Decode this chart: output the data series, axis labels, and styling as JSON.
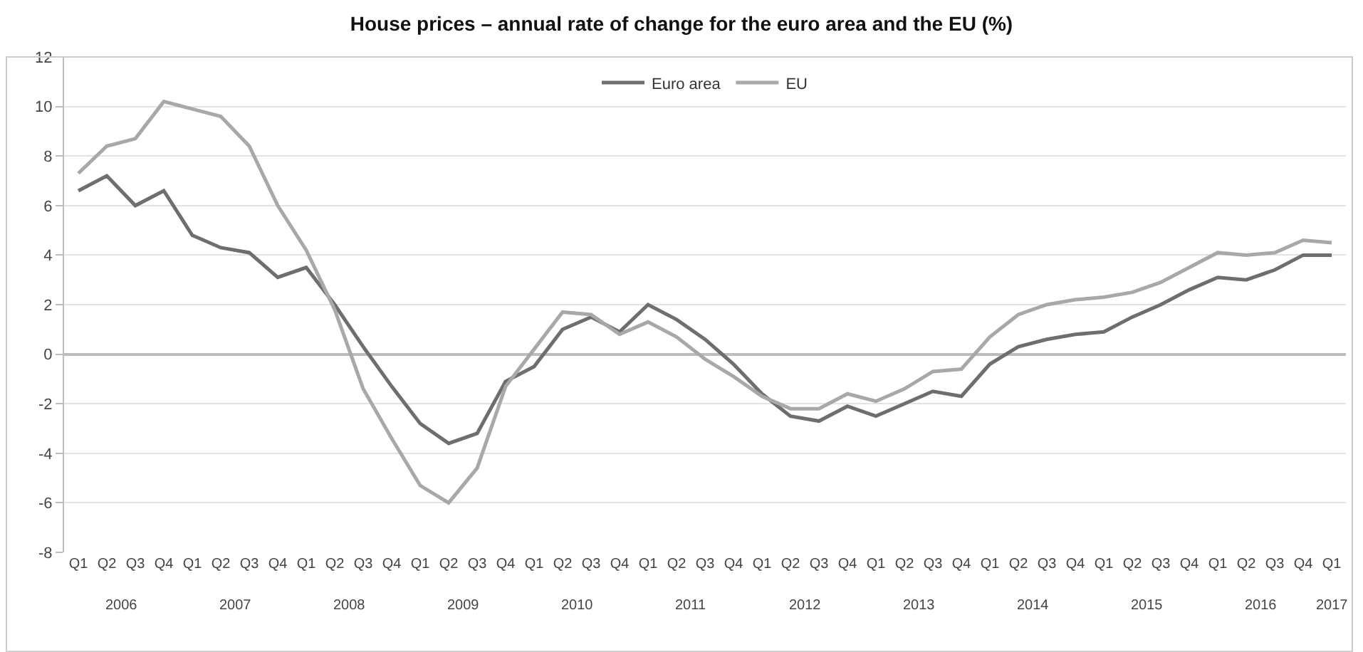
{
  "chart_data": {
    "type": "line",
    "title": "House prices – annual rate of change for the euro area and the EU (%)",
    "categories": [
      "Q1",
      "Q2",
      "Q3",
      "Q4",
      "Q1",
      "Q2",
      "Q3",
      "Q4",
      "Q1",
      "Q2",
      "Q3",
      "Q4",
      "Q1",
      "Q2",
      "Q3",
      "Q4",
      "Q1",
      "Q2",
      "Q3",
      "Q4",
      "Q1",
      "Q2",
      "Q3",
      "Q4",
      "Q1",
      "Q2",
      "Q3",
      "Q4",
      "Q1",
      "Q2",
      "Q3",
      "Q4",
      "Q1",
      "Q2",
      "Q3",
      "Q4",
      "Q1",
      "Q2",
      "Q3",
      "Q4",
      "Q1",
      "Q2",
      "Q3",
      "Q4",
      "Q1"
    ],
    "annotations": [
      "2006",
      "2007",
      "2008",
      "2009",
      "2010",
      "2011",
      "2012",
      "2013",
      "2014",
      "2015",
      "2016",
      "2017"
    ],
    "series": [
      {
        "name": "Euro area",
        "color": "#6e6e6e",
        "values": [
          6.6,
          7.2,
          6.0,
          6.6,
          4.8,
          4.3,
          4.1,
          3.1,
          3.5,
          2.0,
          0.3,
          -1.3,
          -2.8,
          -3.6,
          -3.2,
          -1.1,
          -0.5,
          1.0,
          1.5,
          0.9,
          2.0,
          1.4,
          0.6,
          -0.4,
          -1.6,
          -2.5,
          -2.7,
          -2.1,
          -2.5,
          -2.0,
          -1.5,
          -1.7,
          -0.4,
          0.3,
          0.6,
          0.8,
          0.9,
          1.5,
          2.0,
          2.6,
          3.1,
          3.0,
          3.4,
          4.0,
          4.0
        ]
      },
      {
        "name": "EU",
        "color": "#a8a8a8",
        "values": [
          7.3,
          8.4,
          8.7,
          10.2,
          9.9,
          9.6,
          8.4,
          6.0,
          4.2,
          1.8,
          -1.4,
          -3.4,
          -5.3,
          -6.0,
          -4.6,
          -1.3,
          0.2,
          1.7,
          1.6,
          0.8,
          1.3,
          0.7,
          -0.2,
          -0.9,
          -1.7,
          -2.2,
          -2.2,
          -1.6,
          -1.9,
          -1.4,
          -0.7,
          -0.6,
          0.7,
          1.6,
          2.0,
          2.2,
          2.3,
          2.5,
          2.9,
          3.5,
          4.1,
          4.0,
          4.1,
          4.6,
          4.5
        ]
      }
    ],
    "ylim": [
      -8,
      12
    ],
    "yticks": [
      -8,
      -6,
      -4,
      -2,
      0,
      2,
      4,
      6,
      8,
      10,
      12
    ],
    "grid": "y",
    "legend": "top",
    "marker": "none",
    "line_style": "solid"
  }
}
